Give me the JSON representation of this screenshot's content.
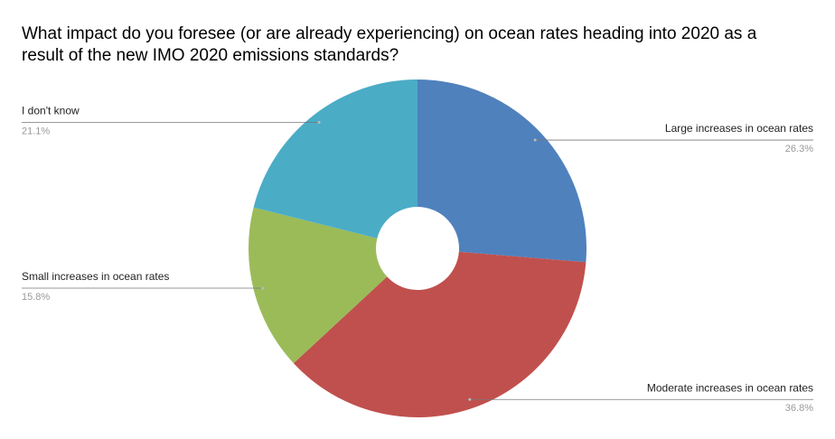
{
  "chart_data": {
    "type": "pie",
    "title": [
      "What impact do you foresee (or are already experiencing) on ocean rates heading into 2020 as a",
      "result of the new IMO 2020 emissions standards?"
    ],
    "categories": [
      "Large increases in ocean rates",
      "Moderate increases in ocean rates",
      "Small increases in ocean rates",
      "I don't know"
    ],
    "values": [
      26.3,
      36.8,
      15.8,
      21.1
    ],
    "value_labels": [
      "26.3%",
      "36.8%",
      "15.8%",
      "21.1%"
    ],
    "colors": [
      "#4f81bd",
      "#c0504d",
      "#9bbb59",
      "#4bacc6"
    ]
  }
}
